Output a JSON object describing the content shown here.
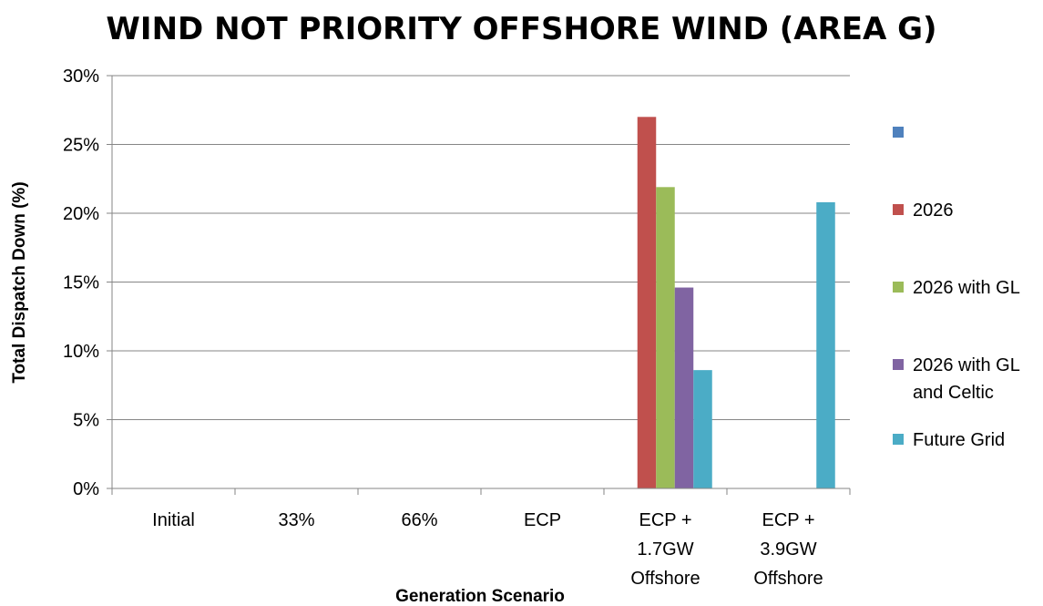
{
  "chart_data": {
    "type": "bar",
    "title": "WIND NOT PRIORITY OFFSHORE WIND (AREA G)",
    "xlabel": "Generation Scenario",
    "ylabel": "Total Dispatch Down (%)",
    "ylim": [
      0,
      30
    ],
    "yticks": [
      "0%",
      "5%",
      "10%",
      "15%",
      "20%",
      "25%",
      "30%"
    ],
    "grid": true,
    "legend_position": "right",
    "categories": [
      [
        "Initial"
      ],
      [
        "33%"
      ],
      [
        "66%"
      ],
      [
        "ECP"
      ],
      [
        "ECP +",
        "1.7GW",
        "Offshore"
      ],
      [
        "ECP +",
        "3.9GW",
        "Offshore"
      ]
    ],
    "series": [
      {
        "name": "",
        "color": "#4f81bd",
        "values": [
          0,
          0,
          0,
          0,
          0,
          0
        ]
      },
      {
        "name": "2026",
        "color": "#c0504d",
        "values": [
          0,
          0,
          0,
          0,
          27.0,
          0
        ]
      },
      {
        "name": "2026 with GL",
        "color": "#9bbb59",
        "values": [
          0,
          0,
          0,
          0,
          21.9,
          0
        ]
      },
      {
        "name": "2026 with GL and Celtic",
        "legend_lines": [
          "2026 with GL",
          "and Celtic"
        ],
        "color": "#8064a2",
        "values": [
          0,
          0,
          0,
          0,
          14.6,
          0
        ]
      },
      {
        "name": "Future Grid",
        "color": "#4bacc6",
        "values": [
          0,
          0,
          0,
          0,
          8.6,
          20.8
        ]
      }
    ]
  }
}
